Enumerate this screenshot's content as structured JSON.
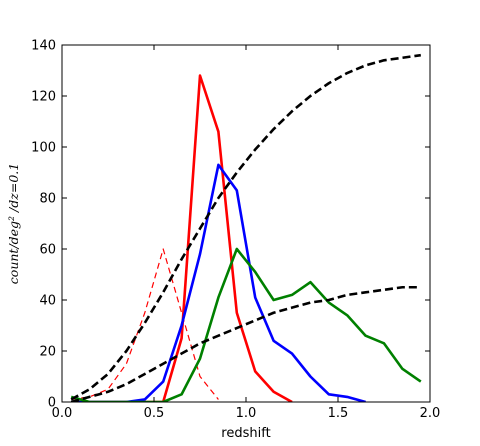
{
  "chart_data": {
    "type": "line",
    "title": "",
    "xlabel": "redshift",
    "ylabel": "count/deg² /dz=0.1",
    "xlim": [
      0.0,
      2.0
    ],
    "ylim": [
      0,
      140
    ],
    "xticks": [
      "0.0",
      "0.5",
      "1.0",
      "1.5",
      "2.0"
    ],
    "yticks": [
      "0",
      "20",
      "40",
      "60",
      "80",
      "100",
      "120",
      "140"
    ],
    "xtick_values": [
      0.0,
      0.5,
      1.0,
      1.5,
      2.0
    ],
    "ytick_values": [
      0,
      20,
      40,
      60,
      80,
      100,
      120,
      140
    ],
    "grid": false,
    "legend": "none",
    "series": [
      {
        "color": "#ff0000",
        "style": "dashed",
        "width": "thin",
        "x": [
          0.05,
          0.15,
          0.25,
          0.35,
          0.45,
          0.55,
          0.65,
          0.75,
          0.85
        ],
        "y": [
          1,
          2,
          5,
          15,
          35,
          60,
          35,
          10,
          1
        ]
      },
      {
        "color": "#ff0000",
        "style": "solid",
        "width": "thick",
        "x": [
          0.05,
          0.15,
          0.25,
          0.35,
          0.45,
          0.55,
          0.65,
          0.75,
          0.85,
          0.95,
          1.05,
          1.15,
          1.25
        ],
        "y": [
          0,
          0,
          0,
          0,
          0,
          0,
          25,
          128,
          106,
          35,
          12,
          4,
          0
        ]
      },
      {
        "color": "#0000ff",
        "style": "solid",
        "width": "thick",
        "x": [
          0.05,
          0.15,
          0.25,
          0.35,
          0.45,
          0.55,
          0.65,
          0.75,
          0.85,
          0.95,
          1.05,
          1.15,
          1.25,
          1.35,
          1.45,
          1.55,
          1.65
        ],
        "y": [
          0,
          0,
          0,
          0,
          1,
          8,
          30,
          58,
          93,
          83,
          41,
          24,
          19,
          10,
          3,
          2,
          0
        ]
      },
      {
        "color": "#008000",
        "style": "solid",
        "width": "thick",
        "x": [
          0.05,
          0.15,
          0.25,
          0.35,
          0.45,
          0.55,
          0.65,
          0.75,
          0.85,
          0.95,
          1.05,
          1.15,
          1.25,
          1.35,
          1.45,
          1.55,
          1.65,
          1.75,
          1.85,
          1.95
        ],
        "y": [
          2,
          0,
          0,
          0,
          0,
          0,
          3,
          17,
          41,
          60,
          51,
          40,
          42,
          47,
          39,
          34,
          26,
          23,
          13,
          8
        ]
      },
      {
        "color": "#000000",
        "style": "dashed",
        "width": "thick",
        "x": [
          0.05,
          0.15,
          0.25,
          0.35,
          0.45,
          0.55,
          0.65,
          0.75,
          0.85,
          0.95,
          1.05,
          1.15,
          1.25,
          1.35,
          1.45,
          1.55,
          1.65,
          1.75,
          1.85,
          1.95
        ],
        "y": [
          1,
          5,
          11,
          20,
          31,
          43,
          56,
          68,
          80,
          90,
          99,
          107,
          114,
          120,
          125,
          129,
          132,
          134,
          135,
          136
        ]
      },
      {
        "color": "#000000",
        "style": "dashed",
        "width": "thick",
        "x": [
          0.05,
          0.15,
          0.25,
          0.35,
          0.45,
          0.55,
          0.65,
          0.75,
          0.85,
          0.95,
          1.05,
          1.15,
          1.25,
          1.35,
          1.45,
          1.55,
          1.65,
          1.75,
          1.85,
          1.95
        ],
        "y": [
          0,
          2,
          4,
          7,
          11,
          15,
          19,
          23,
          26,
          29,
          32,
          35,
          37,
          39,
          40,
          42,
          43,
          44,
          45,
          45
        ]
      }
    ]
  }
}
